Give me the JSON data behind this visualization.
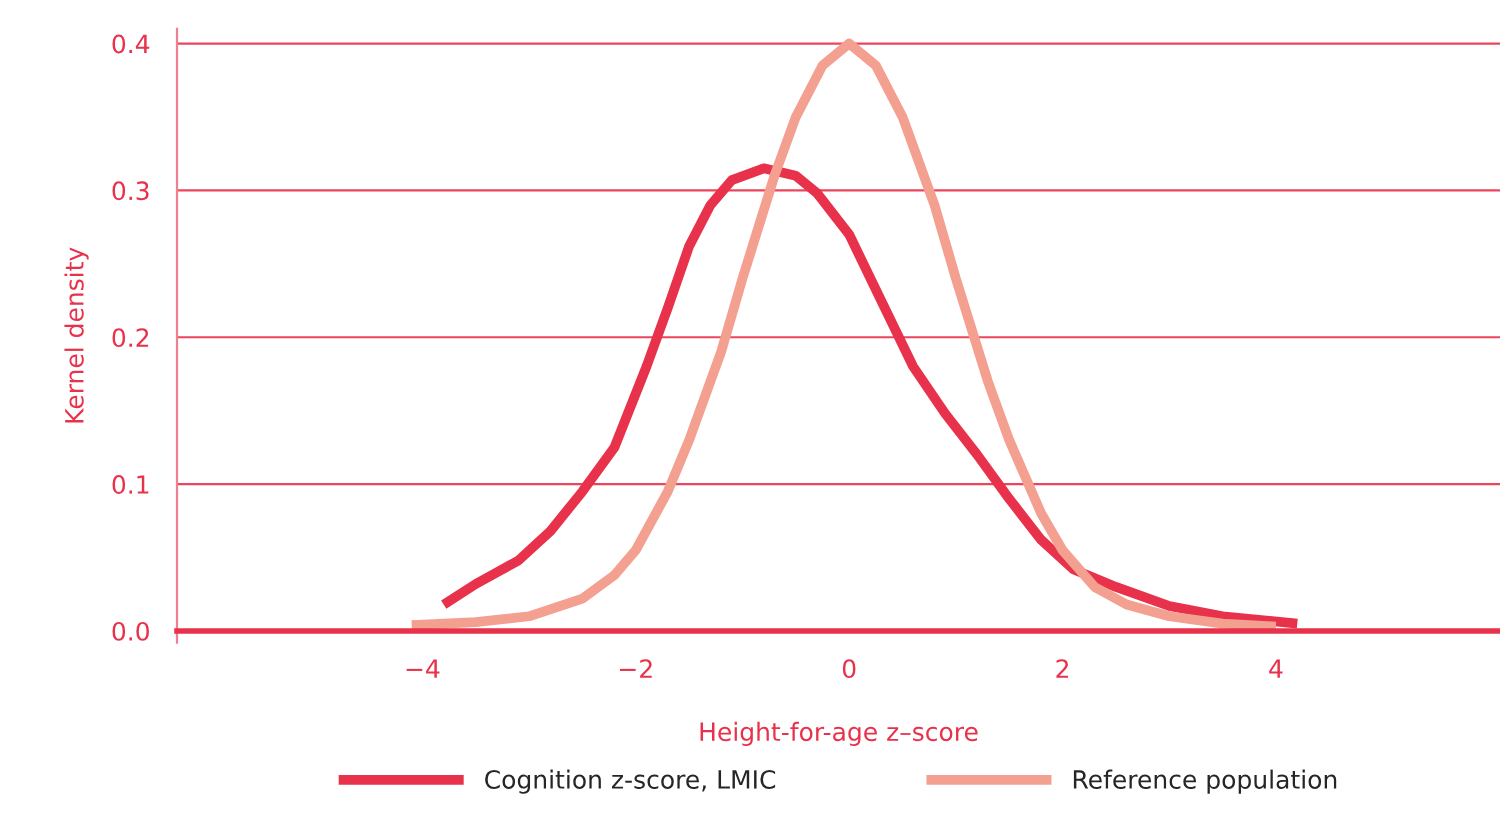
{
  "chart_data": {
    "type": "line",
    "xlabel": "Height-for-age z–score",
    "ylabel": "Kernel density",
    "xlim": [
      -6.3,
      6.1
    ],
    "ylim": [
      -0.008,
      0.41
    ],
    "xticks": [
      {
        "value": -4,
        "label": "−4"
      },
      {
        "value": -2,
        "label": "−2"
      },
      0,
      2,
      4
    ],
    "yticks": [
      {
        "value": 0,
        "label": "0.0"
      },
      0.1,
      0.2,
      0.3,
      0.4
    ],
    "grid": "y",
    "legend": "bottom",
    "line_style": "solid",
    "marker": "none",
    "series": [
      {
        "name": "Cognition z-score, LMIC",
        "color": "#e8314a",
        "x": [
          -3.8,
          -3.5,
          -3.3,
          -3.1,
          -2.8,
          -2.5,
          -2.2,
          -1.9,
          -1.7,
          -1.5,
          -1.3,
          -1.1,
          -0.8,
          -0.5,
          -0.3,
          0,
          0.3,
          0.6,
          0.9,
          1.2,
          1.5,
          1.8,
          2.1,
          2.5,
          3.0,
          3.5,
          4.2
        ],
        "values": [
          0.018,
          0.032,
          0.04,
          0.048,
          0.068,
          0.095,
          0.125,
          0.18,
          0.22,
          0.262,
          0.29,
          0.307,
          0.315,
          0.31,
          0.298,
          0.27,
          0.225,
          0.18,
          0.148,
          0.12,
          0.09,
          0.062,
          0.042,
          0.03,
          0.017,
          0.01,
          0.005
        ]
      },
      {
        "name": "Reference population",
        "color": "#f4a090",
        "x": [
          -4.1,
          -3.5,
          -3,
          -2.5,
          -2.2,
          -2,
          -1.7,
          -1.5,
          -1.2,
          -1,
          -0.7,
          -0.5,
          -0.25,
          0,
          0.25,
          0.5,
          0.8,
          1,
          1.3,
          1.5,
          1.8,
          2,
          2.3,
          2.6,
          3,
          3.5,
          4
        ],
        "values": [
          0.004,
          0.006,
          0.01,
          0.022,
          0.038,
          0.055,
          0.095,
          0.13,
          0.19,
          0.24,
          0.31,
          0.35,
          0.385,
          0.4,
          0.385,
          0.35,
          0.29,
          0.24,
          0.17,
          0.13,
          0.08,
          0.055,
          0.03,
          0.018,
          0.01,
          0.005,
          0.003
        ]
      }
    ]
  }
}
